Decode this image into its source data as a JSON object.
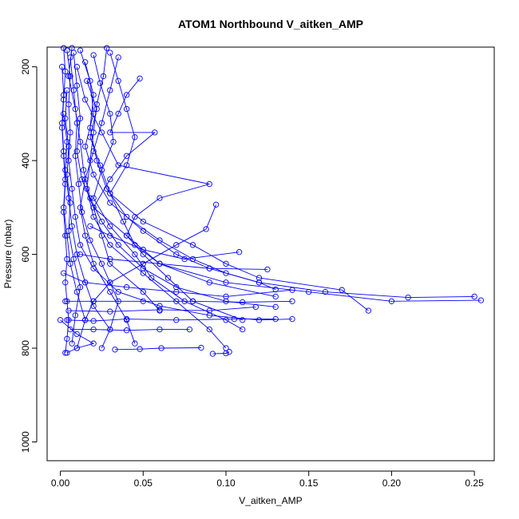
{
  "chart_data": {
    "type": "line",
    "title": "ATOM1 Northbound V_aitken_AMP",
    "xlabel": "V_aitken_AMP",
    "ylabel": "Pressure (mbar)",
    "xlim": [
      -0.008,
      0.262
    ],
    "ylim": [
      1040,
      158
    ],
    "y_reversed": true,
    "xticks": [
      0.0,
      0.05,
      0.1,
      0.15,
      0.2,
      0.25
    ],
    "xtick_labels": [
      "0.00",
      "0.05",
      "0.10",
      "0.15",
      "0.20",
      "0.25"
    ],
    "yticks": [
      200,
      400,
      600,
      800,
      1000
    ],
    "ytick_labels": [
      "200",
      "400",
      "600",
      "800",
      "1000"
    ],
    "marker": "open-circle",
    "color": "#0000ff",
    "grid": false,
    "series": [
      {
        "values": [
          [
            0.002,
            160
          ],
          [
            0.003,
            210
          ],
          [
            0.002,
            270
          ],
          [
            0.001,
            330
          ],
          [
            0.002,
            390
          ],
          [
            0.003,
            450
          ],
          [
            0.002,
            510
          ],
          [
            0.003,
            560
          ],
          [
            0.004,
            610
          ],
          [
            0.003,
            660
          ],
          [
            0.004,
            700
          ],
          [
            0.005,
            740
          ],
          [
            0.004,
            780
          ],
          [
            0.003,
            810
          ]
        ]
      },
      {
        "values": [
          [
            0.004,
            165
          ],
          [
            0.006,
            220
          ],
          [
            0.005,
            280
          ],
          [
            0.006,
            340
          ],
          [
            0.005,
            400
          ],
          [
            0.007,
            460
          ],
          [
            0.009,
            520
          ],
          [
            0.012,
            580
          ],
          [
            0.02,
            630
          ],
          [
            0.035,
            680
          ],
          [
            0.06,
            710
          ],
          [
            0.09,
            730
          ],
          [
            0.12,
            740
          ],
          [
            0.14,
            738
          ]
        ]
      },
      {
        "values": [
          [
            0.012,
            165
          ],
          [
            0.018,
            230
          ],
          [
            0.02,
            300
          ],
          [
            0.015,
            370
          ],
          [
            0.02,
            430
          ],
          [
            0.03,
            490
          ],
          [
            0.05,
            550
          ],
          [
            0.07,
            600
          ],
          [
            0.09,
            630
          ],
          [
            0.12,
            660
          ],
          [
            0.16,
            680
          ],
          [
            0.21,
            692
          ],
          [
            0.25,
            690
          ]
        ]
      },
      {
        "values": [
          [
            0.008,
            170
          ],
          [
            0.01,
            240
          ],
          [
            0.012,
            310
          ],
          [
            0.01,
            380
          ],
          [
            0.013,
            440
          ],
          [
            0.02,
            500
          ],
          [
            0.04,
            560
          ],
          [
            0.06,
            620
          ],
          [
            0.1,
            660
          ],
          [
            0.15,
            680
          ],
          [
            0.2,
            700
          ],
          [
            0.254,
            698
          ]
        ]
      },
      {
        "values": [
          [
            0.03,
            170
          ],
          [
            0.035,
            230
          ],
          [
            0.04,
            290
          ],
          [
            0.045,
            350
          ],
          [
            0.04,
            410
          ],
          [
            0.03,
            470
          ],
          [
            0.05,
            530
          ],
          [
            0.08,
            580
          ],
          [
            0.1,
            620
          ],
          [
            0.12,
            650
          ],
          [
            0.17,
            676
          ],
          [
            0.186,
            720
          ]
        ]
      },
      {
        "values": [
          [
            0.02,
            175
          ],
          [
            0.024,
            235
          ],
          [
            0.03,
            300
          ],
          [
            0.032,
            360
          ],
          [
            0.025,
            420
          ],
          [
            0.02,
            480
          ],
          [
            0.03,
            540
          ],
          [
            0.045,
            600
          ],
          [
            0.055,
            650
          ],
          [
            0.075,
            700
          ],
          [
            0.1,
            740
          ],
          [
            0.11,
            760
          ]
        ]
      },
      {
        "values": [
          [
            0.048,
            225
          ],
          [
            0.04,
            260
          ],
          [
            0.035,
            300
          ],
          [
            0.03,
            340
          ],
          [
            0.057,
            340
          ],
          [
            0.04,
            390
          ],
          [
            0.03,
            440
          ],
          [
            0.02,
            500
          ],
          [
            0.025,
            560
          ],
          [
            0.03,
            620
          ],
          [
            0.05,
            680
          ],
          [
            0.06,
            720
          ]
        ]
      },
      {
        "values": [
          [
            0.035,
            180
          ],
          [
            0.03,
            250
          ],
          [
            0.025,
            320
          ],
          [
            0.02,
            380
          ],
          [
            0.015,
            440
          ],
          [
            0.012,
            500
          ],
          [
            0.015,
            560
          ],
          [
            0.02,
            620
          ],
          [
            0.03,
            680
          ],
          [
            0.04,
            740
          ],
          [
            0.045,
            790
          ]
        ]
      },
      {
        "values": [
          [
            0.006,
            180
          ],
          [
            0.008,
            250
          ],
          [
            0.01,
            320
          ],
          [
            0.009,
            390
          ],
          [
            0.011,
            450
          ],
          [
            0.013,
            510
          ],
          [
            0.018,
            570
          ],
          [
            0.025,
            620
          ],
          [
            0.03,
            660
          ],
          [
            0.035,
            700
          ],
          [
            0.03,
            760
          ],
          [
            0.025,
            800
          ]
        ]
      },
      {
        "values": [
          [
            0.015,
            190
          ],
          [
            0.02,
            260
          ],
          [
            0.018,
            330
          ],
          [
            0.022,
            400
          ],
          [
            0.028,
            460
          ],
          [
            0.04,
            520
          ],
          [
            0.06,
            570
          ],
          [
            0.08,
            610
          ],
          [
            0.1,
            640
          ],
          [
            0.12,
            660
          ],
          [
            0.13,
            675
          ]
        ]
      },
      {
        "values": [
          [
            0.001,
            200
          ],
          [
            0.002,
            260
          ],
          [
            0.001,
            320
          ],
          [
            0.002,
            380
          ],
          [
            0.003,
            440
          ],
          [
            0.002,
            500
          ],
          [
            0.004,
            560
          ],
          [
            0.006,
            620
          ],
          [
            0.01,
            680
          ],
          [
            0.015,
            740
          ],
          [
            0.01,
            800
          ]
        ]
      },
      {
        "values": [
          [
            0.01,
            200
          ],
          [
            0.015,
            270
          ],
          [
            0.025,
            340
          ],
          [
            0.035,
            410
          ],
          [
            0.09,
            450
          ],
          [
            0.06,
            480
          ],
          [
            0.045,
            520
          ],
          [
            0.04,
            560
          ],
          [
            0.05,
            600
          ],
          [
            0.065,
            650
          ],
          [
            0.08,
            700
          ],
          [
            0.11,
            740
          ]
        ]
      },
      {
        "values": [
          [
            0.028,
            160
          ],
          [
            0.026,
            220
          ],
          [
            0.022,
            280
          ],
          [
            0.02,
            340
          ],
          [
            0.018,
            400
          ],
          [
            0.016,
            460
          ],
          [
            0.02,
            520
          ],
          [
            0.03,
            580
          ],
          [
            0.05,
            640
          ],
          [
            0.07,
            700
          ],
          [
            0.09,
            760
          ],
          [
            0.1,
            800
          ]
        ]
      },
      {
        "values": [
          [
            0.007,
            160
          ],
          [
            0.005,
            220
          ],
          [
            0.009,
            290
          ],
          [
            0.012,
            360
          ],
          [
            0.014,
            420
          ],
          [
            0.018,
            480
          ],
          [
            0.025,
            530
          ],
          [
            0.035,
            580
          ],
          [
            0.05,
            630
          ],
          [
            0.07,
            670
          ],
          [
            0.1,
            700
          ],
          [
            0.13,
            712
          ]
        ]
      },
      {
        "values": [
          [
            0.094,
            494
          ],
          [
            0.088,
            546
          ],
          [
            0.07,
            580
          ],
          [
            0.05,
            620
          ],
          [
            0.03,
            660
          ],
          [
            0.02,
            700
          ],
          [
            0.015,
            740
          ]
        ]
      },
      {
        "values": [
          [
            0.003,
            700
          ],
          [
            0.02,
            700
          ],
          [
            0.05,
            700
          ],
          [
            0.08,
            700
          ],
          [
            0.11,
            702
          ],
          [
            0.14,
            700
          ]
        ]
      },
      {
        "values": [
          [
            0.005,
            720
          ],
          [
            0.03,
            722
          ],
          [
            0.06,
            718
          ],
          [
            0.09,
            720
          ],
          [
            0.118,
            712
          ]
        ]
      },
      {
        "values": [
          [
            0.004,
            740
          ],
          [
            0.02,
            742
          ],
          [
            0.04,
            738
          ],
          [
            0.07,
            740
          ],
          [
            0.105,
            738
          ],
          [
            0.13,
            738
          ]
        ]
      },
      {
        "values": [
          [
            0.033,
            803
          ],
          [
            0.048,
            802
          ],
          [
            0.061,
            800
          ],
          [
            0.085,
            799
          ]
        ]
      },
      {
        "values": [
          [
            0.092,
            812
          ],
          [
            0.1,
            811
          ],
          [
            0.102,
            808
          ]
        ]
      },
      {
        "values": [
          [
            0.006,
            760
          ],
          [
            0.02,
            760
          ],
          [
            0.04,
            762
          ],
          [
            0.06,
            760
          ],
          [
            0.078,
            760
          ]
        ]
      },
      {
        "values": [
          [
            0.012,
            600
          ],
          [
            0.03,
            610
          ],
          [
            0.06,
            620
          ],
          [
            0.09,
            630
          ],
          [
            0.125,
            632
          ]
        ]
      },
      {
        "values": [
          [
            0.018,
            540
          ],
          [
            0.03,
            560
          ],
          [
            0.05,
            590
          ],
          [
            0.075,
            610
          ],
          [
            0.108,
            595
          ]
        ]
      },
      {
        "values": [
          [
            0.002,
            640
          ],
          [
            0.015,
            660
          ],
          [
            0.04,
            670
          ],
          [
            0.07,
            680
          ],
          [
            0.1,
            690
          ],
          [
            0.14,
            676
          ]
        ]
      },
      {
        "values": [
          [
            0.0,
            740
          ],
          [
            0.01,
            770
          ],
          [
            0.02,
            790
          ],
          [
            0.01,
            800
          ],
          [
            0.004,
            810
          ]
        ]
      },
      {
        "values": [
          [
            0.002,
            300
          ],
          [
            0.004,
            360
          ],
          [
            0.003,
            420
          ],
          [
            0.005,
            480
          ],
          [
            0.007,
            540
          ],
          [
            0.01,
            600
          ],
          [
            0.015,
            660
          ],
          [
            0.02,
            710
          ],
          [
            0.03,
            760
          ]
        ]
      },
      {
        "values": [
          [
            0.016,
            230
          ],
          [
            0.022,
            290
          ],
          [
            0.018,
            350
          ],
          [
            0.024,
            410
          ],
          [
            0.03,
            470
          ],
          [
            0.038,
            530
          ],
          [
            0.045,
            580
          ],
          [
            0.06,
            620
          ],
          [
            0.09,
            660
          ],
          [
            0.13,
            690
          ]
        ]
      },
      {
        "values": [
          [
            0.004,
            250
          ],
          [
            0.003,
            310
          ],
          [
            0.005,
            370
          ],
          [
            0.004,
            430
          ],
          [
            0.006,
            490
          ],
          [
            0.005,
            550
          ],
          [
            0.008,
            610
          ],
          [
            0.012,
            670
          ],
          [
            0.009,
            730
          ],
          [
            0.007,
            790
          ]
        ]
      }
    ]
  }
}
